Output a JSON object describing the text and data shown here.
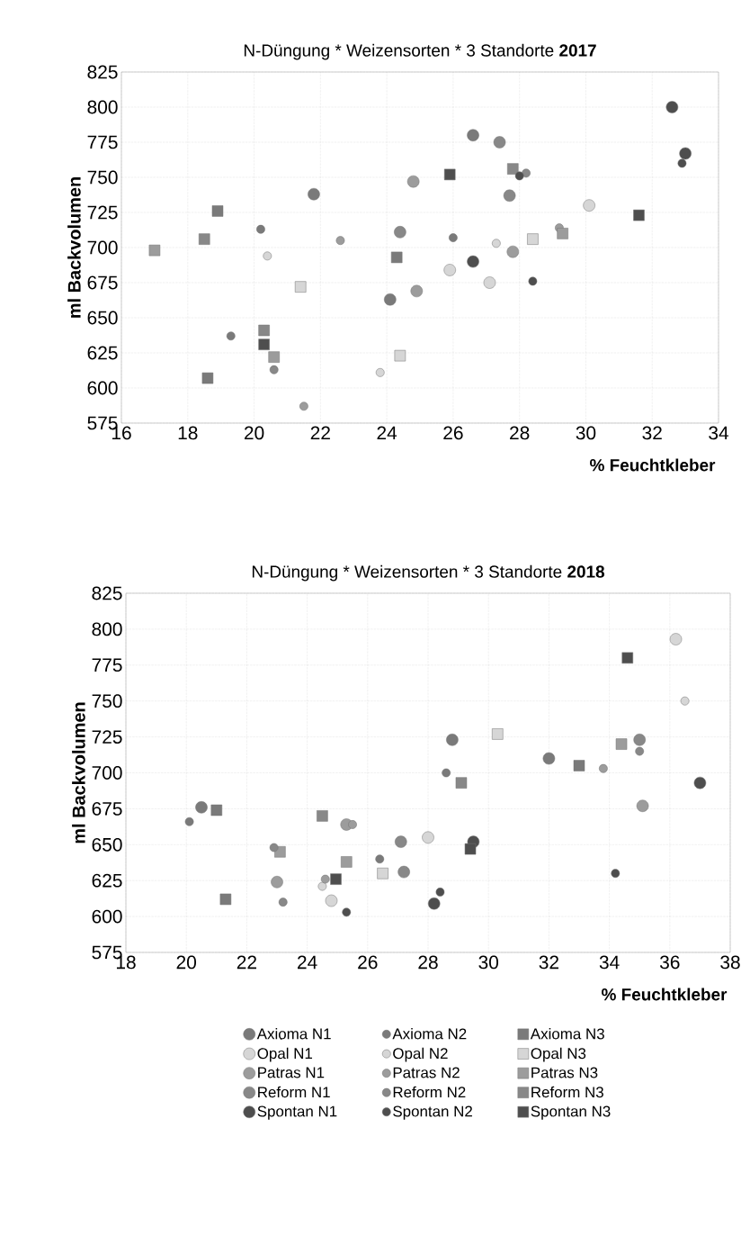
{
  "chart_data": [
    {
      "type": "scatter",
      "title": "N-Düngung * Weizensorten * 3 Standorte **2017**",
      "xlabel": "% Feuchtkleber",
      "ylabel": "ml Backvolumen",
      "xlim": [
        16,
        34
      ],
      "ylim": [
        575,
        825
      ],
      "xticks": [
        16,
        18,
        20,
        22,
        24,
        26,
        28,
        30,
        32,
        34
      ],
      "yticks": [
        575,
        600,
        625,
        650,
        675,
        700,
        725,
        750,
        775,
        800,
        825
      ],
      "grid": true,
      "legend": false,
      "series": [
        {
          "color": "#7a7a7a",
          "marker": "circle",
          "x": [
            26.6,
            21.8,
            24.1
          ],
          "values": [
            780,
            738,
            663
          ]
        },
        {
          "color": "#7a7a7a",
          "marker": "circle",
          "x": [
            20.2,
            26.0,
            19.3
          ],
          "values": [
            713,
            707,
            637
          ]
        },
        {
          "color": "#7a7a7a",
          "marker": "square",
          "x": [
            18.9,
            24.3,
            18.6
          ],
          "values": [
            726,
            693,
            607
          ]
        },
        {
          "color": "#d6d6d6",
          "marker": "circle",
          "x": [
            30.1,
            25.9,
            27.1
          ],
          "values": [
            730,
            684,
            675
          ]
        },
        {
          "color": "#d6d6d6",
          "marker": "circle",
          "x": [
            27.3,
            20.4,
            23.8
          ],
          "values": [
            703,
            694,
            611
          ]
        },
        {
          "color": "#d6d6d6",
          "marker": "square",
          "x": [
            28.4,
            21.4,
            24.4
          ],
          "values": [
            706,
            672,
            623
          ]
        },
        {
          "color": "#9c9c9c",
          "marker": "circle",
          "x": [
            24.8,
            27.8,
            24.9
          ],
          "values": [
            747,
            697,
            669
          ]
        },
        {
          "color": "#9c9c9c",
          "marker": "circle",
          "x": [
            29.2,
            22.6,
            21.5
          ],
          "values": [
            714,
            705,
            587
          ]
        },
        {
          "color": "#9c9c9c",
          "marker": "square",
          "x": [
            29.3,
            17.0,
            20.6
          ],
          "values": [
            710,
            698,
            622
          ]
        },
        {
          "color": "#888888",
          "marker": "circle",
          "x": [
            27.4,
            27.7,
            24.4
          ],
          "values": [
            775,
            737,
            711
          ]
        },
        {
          "color": "#888888",
          "marker": "circle",
          "x": [
            28.2,
            20.6
          ],
          "values": [
            753,
            613
          ]
        },
        {
          "color": "#888888",
          "marker": "square",
          "x": [
            27.8,
            18.5,
            20.3
          ],
          "values": [
            756,
            706,
            641
          ]
        },
        {
          "color": "#4e4e4e",
          "marker": "circle",
          "x": [
            32.6,
            33.0,
            26.6
          ],
          "values": [
            800,
            767,
            690
          ]
        },
        {
          "color": "#4e4e4e",
          "marker": "circle",
          "x": [
            32.9,
            28.0,
            28.4
          ],
          "values": [
            760,
            751,
            676
          ]
        },
        {
          "color": "#4e4e4e",
          "marker": "square",
          "x": [
            25.9,
            31.6,
            20.3
          ],
          "values": [
            752,
            723,
            631
          ]
        }
      ]
    },
    {
      "type": "scatter",
      "title": "N-Düngung * Weizensorten * 3 Standorte **2018**",
      "xlabel": "% Feuchtkleber",
      "ylabel": "ml Backvolumen",
      "xlim": [
        18,
        38
      ],
      "ylim": [
        575,
        825
      ],
      "xticks": [
        18,
        20,
        22,
        24,
        26,
        28,
        30,
        32,
        34,
        36,
        38
      ],
      "yticks": [
        575,
        600,
        625,
        650,
        675,
        700,
        725,
        750,
        775,
        800,
        825
      ],
      "grid": true,
      "legend": "bottom",
      "series": [
        {
          "name": "Axioma N1",
          "color": "#7a7a7a",
          "marker": "circle",
          "x": [
            28.8,
            32.0,
            20.5
          ],
          "values": [
            723,
            710,
            676
          ]
        },
        {
          "name": "Axioma N2",
          "color": "#7a7a7a",
          "marker": "circle",
          "x": [
            28.6,
            20.1,
            26.4
          ],
          "values": [
            700,
            666,
            640
          ]
        },
        {
          "name": "Axioma N3",
          "color": "#7a7a7a",
          "marker": "square",
          "x": [
            33.0,
            21.0,
            21.3
          ],
          "values": [
            705,
            674,
            612
          ]
        },
        {
          "name": "Opal N1",
          "color": "#d6d6d6",
          "marker": "circle",
          "x": [
            36.2,
            28.0,
            24.8
          ],
          "values": [
            793,
            655,
            611
          ]
        },
        {
          "name": "Opal N2",
          "color": "#d6d6d6",
          "marker": "circle",
          "x": [
            36.5,
            24.5
          ],
          "values": [
            750,
            621
          ]
        },
        {
          "name": "Opal N3",
          "color": "#d6d6d6",
          "marker": "square",
          "x": [
            30.3,
            26.5
          ],
          "values": [
            727,
            630
          ]
        },
        {
          "name": "Patras N1",
          "color": "#9c9c9c",
          "marker": "circle",
          "x": [
            35.1,
            25.3,
            23.0
          ],
          "values": [
            677,
            664,
            624
          ]
        },
        {
          "name": "Patras N2",
          "color": "#9c9c9c",
          "marker": "circle",
          "x": [
            33.8,
            25.5,
            24.6
          ],
          "values": [
            703,
            664,
            626
          ]
        },
        {
          "name": "Patras N3",
          "color": "#9c9c9c",
          "marker": "square",
          "x": [
            34.4,
            23.1,
            25.3
          ],
          "values": [
            720,
            645,
            638
          ]
        },
        {
          "name": "Reform N1",
          "color": "#888888",
          "marker": "circle",
          "x": [
            35.0,
            27.1,
            27.2
          ],
          "values": [
            723,
            652,
            631
          ]
        },
        {
          "name": "Reform N2",
          "color": "#888888",
          "marker": "circle",
          "x": [
            35.0,
            22.9,
            23.2
          ],
          "values": [
            715,
            648,
            610
          ]
        },
        {
          "name": "Reform N3",
          "color": "#888888",
          "marker": "square",
          "x": [
            29.1,
            24.5
          ],
          "values": [
            693,
            670
          ]
        },
        {
          "name": "Spontan N1",
          "color": "#4e4e4e",
          "marker": "circle",
          "x": [
            37.0,
            29.5,
            28.2
          ],
          "values": [
            693,
            652,
            609
          ]
        },
        {
          "name": "Spontan N2",
          "color": "#4e4e4e",
          "marker": "circle",
          "x": [
            34.2,
            28.4,
            25.3
          ],
          "values": [
            630,
            617,
            603
          ]
        },
        {
          "name": "Spontan N3",
          "color": "#4e4e4e",
          "marker": "square",
          "x": [
            34.6,
            29.4,
            24.95
          ],
          "values": [
            780,
            647,
            626
          ]
        }
      ]
    }
  ]
}
